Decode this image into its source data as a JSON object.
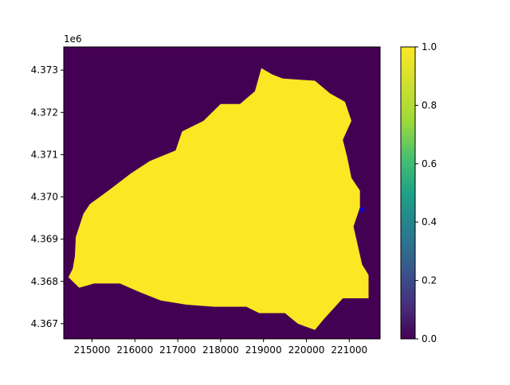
{
  "chart_data": {
    "type": "heatmap",
    "title": "",
    "xlabel": "",
    "ylabel": "",
    "xlim": [
      214340,
      221720
    ],
    "ylim": [
      4366640,
      4373550
    ],
    "x_ticks": [
      "215000",
      "216000",
      "217000",
      "218000",
      "219000",
      "220000",
      "221000"
    ],
    "y_ticks": [
      "4.367",
      "4.368",
      "4.369",
      "4.370",
      "4.371",
      "4.372",
      "4.373"
    ],
    "y_offset_label": "1e6",
    "value_range": [
      0,
      1
    ],
    "colormap": "viridis",
    "colors": {
      "low": "#440154",
      "high": "#fde725",
      "marker": "#0000ff"
    },
    "mask_outline": [
      [
        214450,
        4368100
      ],
      [
        214550,
        4368300
      ],
      [
        214600,
        4368600
      ],
      [
        214620,
        4369050
      ],
      [
        214800,
        4369600
      ],
      [
        214950,
        4369830
      ],
      [
        215450,
        4370200
      ],
      [
        215900,
        4370550
      ],
      [
        216350,
        4370850
      ],
      [
        216950,
        4371100
      ],
      [
        217100,
        4371550
      ],
      [
        217600,
        4371800
      ],
      [
        218000,
        4372200
      ],
      [
        218450,
        4372200
      ],
      [
        218800,
        4372500
      ],
      [
        218950,
        4373050
      ],
      [
        219200,
        4372900
      ],
      [
        219450,
        4372800
      ],
      [
        220200,
        4372750
      ],
      [
        220550,
        4372450
      ],
      [
        220900,
        4372250
      ],
      [
        221050,
        4371800
      ],
      [
        220850,
        4371350
      ],
      [
        220950,
        4370950
      ],
      [
        221050,
        4370450
      ],
      [
        221250,
        4370150
      ],
      [
        221250,
        4369750
      ],
      [
        221100,
        4369300
      ],
      [
        221300,
        4368400
      ],
      [
        221450,
        4368150
      ],
      [
        221450,
        4367600
      ],
      [
        220850,
        4367600
      ],
      [
        220400,
        4367100
      ],
      [
        220200,
        4366850
      ],
      [
        219800,
        4367000
      ],
      [
        219500,
        4367250
      ],
      [
        218900,
        4367250
      ],
      [
        218600,
        4367400
      ],
      [
        217850,
        4367400
      ],
      [
        217200,
        4367450
      ],
      [
        216600,
        4367550
      ],
      [
        216100,
        4367750
      ],
      [
        215650,
        4367950
      ],
      [
        215050,
        4367950
      ],
      [
        214700,
        4367850
      ]
    ],
    "marker": [
      221300,
      4369700
    ]
  },
  "colorbar": {
    "ticks": [
      "0.0",
      "0.2",
      "0.4",
      "0.6",
      "0.8",
      "1.0"
    ]
  }
}
